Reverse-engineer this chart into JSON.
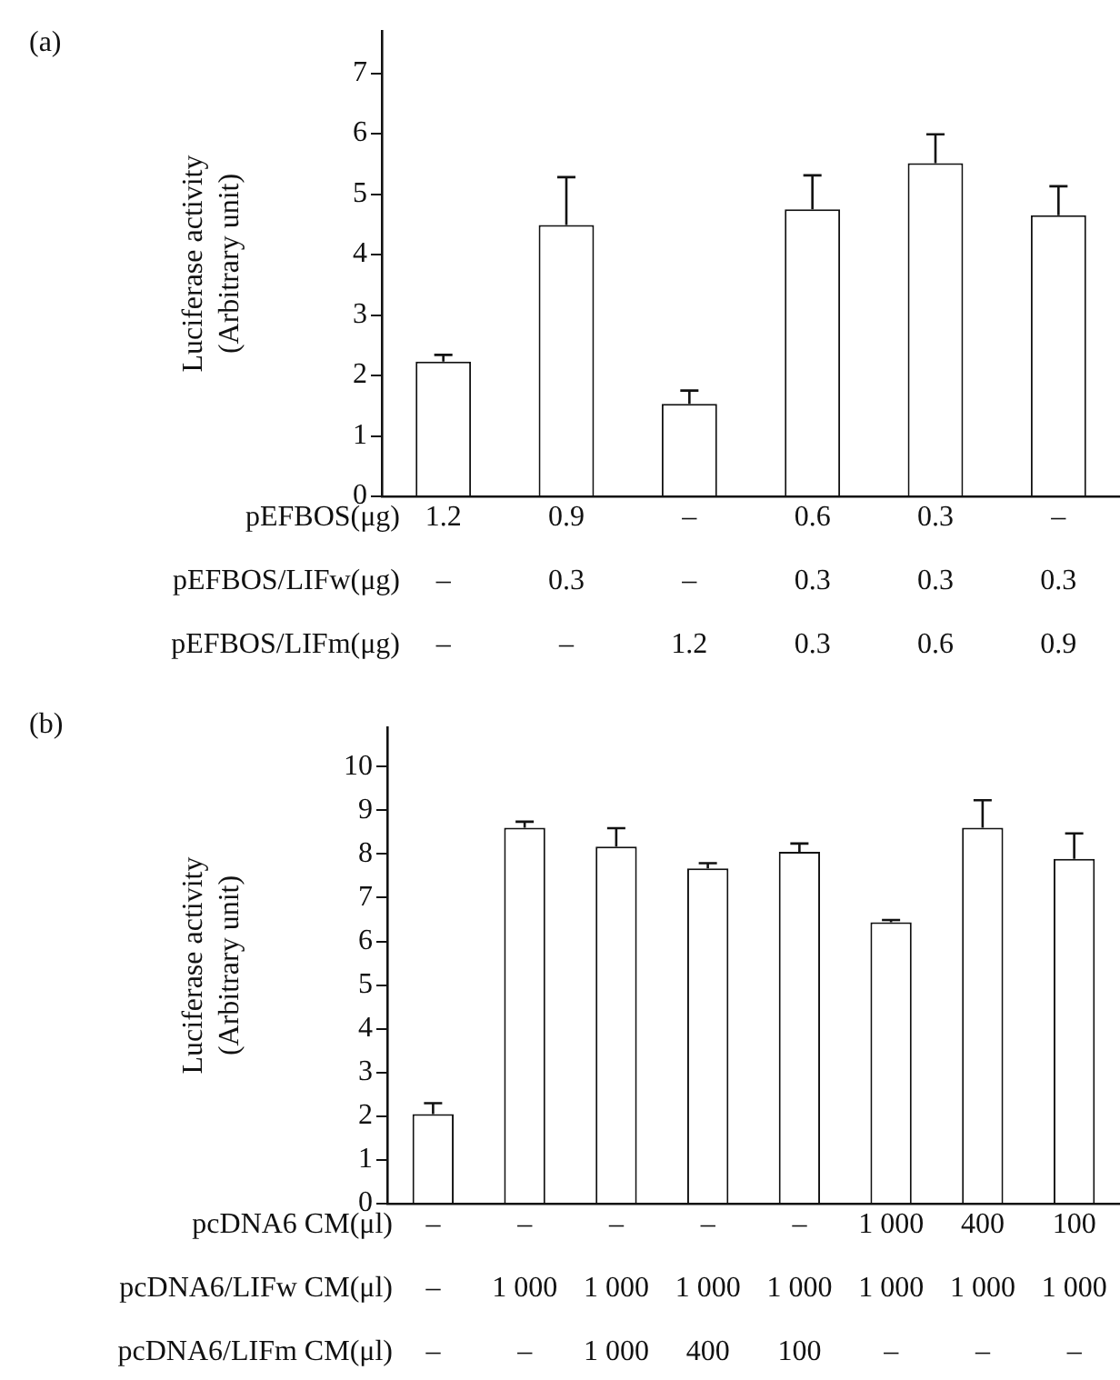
{
  "chart_data": [
    {
      "type": "bar",
      "ylabel": "Luciferase activity\n(Arbitrary unit)",
      "categories": [
        "1.2\n–\n–",
        "0.9\n0.3\n–",
        "–\n–\n1.2",
        "0.6\n0.3\n0.3",
        "0.3\n0.3\n0.6",
        "–\n0.3\n0.9"
      ],
      "annotations": [
        "(a)",
        "pEFBOS(μg)",
        "pEFBOS/LIFw(μg)",
        "pEFBOS/LIFm(μg)"
      ],
      "values": [
        2.23,
        4.49,
        1.53,
        4.75,
        5.51,
        4.65
      ],
      "errors": [
        [
          2.23,
          2.34
        ],
        [
          4.49,
          5.28
        ],
        [
          1.53,
          1.75
        ],
        [
          4.75,
          5.31
        ],
        [
          5.51,
          5.99
        ],
        [
          4.65,
          5.13
        ]
      ],
      "color": "#ffffff",
      "ylim": [
        0,
        7.7
      ],
      "yticks": [
        0,
        1,
        2,
        3,
        4,
        5,
        6,
        7
      ],
      "grid": false,
      "legend": false
    },
    {
      "type": "bar",
      "ylabel": "Luciferase activity\n(Arbitrary unit)",
      "categories": [
        "–\n–\n–",
        "–\n1 000\n–",
        "–\n1 000\n1 000",
        "–\n1 000\n400",
        "–\n1 000\n100",
        "1 000\n1 000\n–",
        "400\n1 000\n–",
        "100\n1 000\n–"
      ],
      "annotations": [
        "(b)",
        "pcDNA6 CM(μl)",
        "pcDNA6/LIFw CM(μl)",
        "pcDNA6/LIFm CM(μl)"
      ],
      "values": [
        2.05,
        8.6,
        8.17,
        7.67,
        8.05,
        6.44,
        8.6,
        7.89
      ],
      "errors": [
        [
          2.05,
          2.3
        ],
        [
          8.6,
          8.74
        ],
        [
          8.17,
          8.59
        ],
        [
          7.67,
          7.79
        ],
        [
          8.05,
          8.24
        ],
        [
          6.44,
          6.49
        ],
        [
          8.6,
          9.23
        ],
        [
          7.89,
          8.47
        ]
      ],
      "color": "#ffffff",
      "ylim": [
        0,
        10.9
      ],
      "yticks": [
        0,
        1,
        2,
        3,
        4,
        5,
        6,
        7,
        8,
        9,
        10
      ],
      "grid": false,
      "legend": false
    }
  ]
}
